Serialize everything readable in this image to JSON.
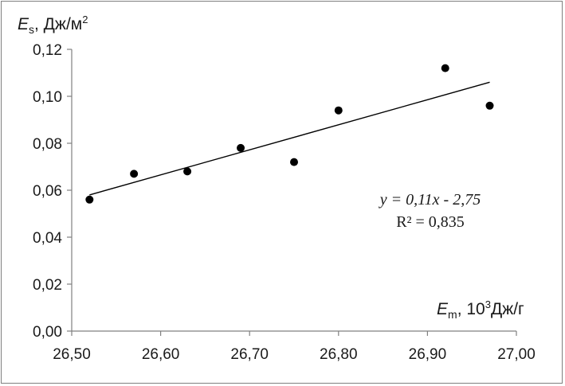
{
  "chart_data": {
    "type": "scatter",
    "title": "",
    "ylabel": {
      "symbol": "E",
      "subscript": "s",
      "unit": ", Дж/м",
      "unit_sup": "2"
    },
    "xlabel": {
      "symbol": "E",
      "subscript": "m",
      "unit_prefix": ", 10",
      "unit_sup": "3",
      "unit": "Дж/г"
    },
    "xlim": [
      26.5,
      27.0
    ],
    "ylim": [
      0.0,
      0.12
    ],
    "x_ticks": [
      26.5,
      26.6,
      26.7,
      26.8,
      26.9,
      27.0
    ],
    "x_tick_labels": [
      "26,50",
      "26,60",
      "26,70",
      "26,80",
      "26,90",
      "27,00"
    ],
    "y_ticks": [
      0.0,
      0.02,
      0.04,
      0.06,
      0.08,
      0.1,
      0.12
    ],
    "y_tick_labels": [
      "0,00",
      "0,02",
      "0,04",
      "0,06",
      "0,08",
      "0,10",
      "0,12"
    ],
    "grid": false,
    "points": [
      {
        "x": 26.52,
        "y": 0.056
      },
      {
        "x": 26.57,
        "y": 0.067
      },
      {
        "x": 26.63,
        "y": 0.068
      },
      {
        "x": 26.69,
        "y": 0.078
      },
      {
        "x": 26.75,
        "y": 0.072
      },
      {
        "x": 26.8,
        "y": 0.094
      },
      {
        "x": 26.92,
        "y": 0.112
      },
      {
        "x": 26.97,
        "y": 0.096
      }
    ],
    "trendline": {
      "x_range": [
        26.52,
        26.97
      ],
      "y_range": [
        0.058,
        0.106
      ],
      "equation": "y = 0,11x - 2,75",
      "r2": "R² = 0,835"
    },
    "colors": {
      "marker": "#000000",
      "line": "#000000",
      "axis": "#808080"
    }
  }
}
